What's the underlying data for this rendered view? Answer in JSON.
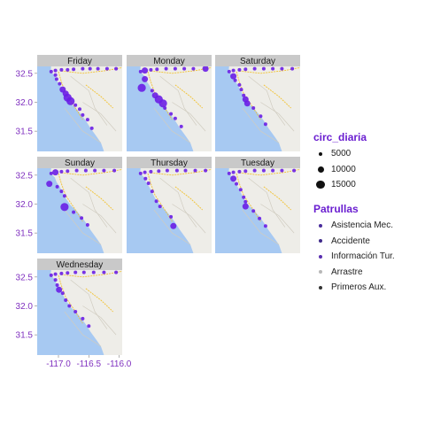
{
  "chart_data": {
    "type": "scatter",
    "facets": [
      "Friday",
      "Monday",
      "Saturday",
      "Sunday",
      "Thursday",
      "Tuesday",
      "Wednesday"
    ],
    "xlim": [
      -117.35,
      -115.95
    ],
    "ylim": [
      31.15,
      32.62
    ],
    "x_ticks": [
      -117.0,
      -116.5,
      -116.0
    ],
    "x_tick_labels": [
      "-117.0",
      "-116.5",
      "-116.0"
    ],
    "y_ticks": [
      31.5,
      32.0,
      32.5
    ],
    "y_tick_labels": [
      "31.5",
      "32.0",
      "32.5"
    ],
    "xlabel": "",
    "ylabel": "",
    "grid": false,
    "legend_position": "right",
    "series": [
      {
        "facet": "Friday",
        "points": [
          {
            "x": -117.12,
            "y": 32.53,
            "size": 5000
          },
          {
            "x": -117.05,
            "y": 32.55,
            "size": 5000
          },
          {
            "x": -116.95,
            "y": 32.56,
            "size": 5000
          },
          {
            "x": -116.85,
            "y": 32.56,
            "size": 5000
          },
          {
            "x": -116.75,
            "y": 32.57,
            "size": 5000
          },
          {
            "x": -116.6,
            "y": 32.58,
            "size": 5000
          },
          {
            "x": -116.48,
            "y": 32.58,
            "size": 5000
          },
          {
            "x": -116.35,
            "y": 32.58,
            "size": 5000
          },
          {
            "x": -116.2,
            "y": 32.58,
            "size": 5000
          },
          {
            "x": -116.05,
            "y": 32.58,
            "size": 5000
          },
          {
            "x": -117.05,
            "y": 32.47,
            "size": 5000
          },
          {
            "x": -117.03,
            "y": 32.4,
            "size": 5000
          },
          {
            "x": -116.98,
            "y": 32.32,
            "size": 5000
          },
          {
            "x": -116.93,
            "y": 32.22,
            "size": 10000
          },
          {
            "x": -116.88,
            "y": 32.15,
            "size": 10000
          },
          {
            "x": -116.85,
            "y": 32.08,
            "size": 15000
          },
          {
            "x": -116.8,
            "y": 32.02,
            "size": 15000
          },
          {
            "x": -116.72,
            "y": 31.95,
            "size": 5000
          },
          {
            "x": -116.65,
            "y": 31.88,
            "size": 5000
          },
          {
            "x": -116.6,
            "y": 31.78,
            "size": 5000
          },
          {
            "x": -116.52,
            "y": 31.7,
            "size": 5000
          },
          {
            "x": -116.45,
            "y": 31.55,
            "size": 5000
          }
        ]
      },
      {
        "facet": "Monday",
        "points": [
          {
            "x": -117.12,
            "y": 32.53,
            "size": 5000
          },
          {
            "x": -117.05,
            "y": 32.55,
            "size": 10000
          },
          {
            "x": -116.95,
            "y": 32.56,
            "size": 5000
          },
          {
            "x": -116.85,
            "y": 32.57,
            "size": 5000
          },
          {
            "x": -116.7,
            "y": 32.58,
            "size": 5000
          },
          {
            "x": -116.55,
            "y": 32.58,
            "size": 5000
          },
          {
            "x": -116.4,
            "y": 32.58,
            "size": 5000
          },
          {
            "x": -116.25,
            "y": 32.58,
            "size": 5000
          },
          {
            "x": -116.05,
            "y": 32.58,
            "size": 10000
          },
          {
            "x": -117.05,
            "y": 32.4,
            "size": 10000
          },
          {
            "x": -117.1,
            "y": 32.25,
            "size": 15000
          },
          {
            "x": -116.93,
            "y": 32.2,
            "size": 5000
          },
          {
            "x": -116.88,
            "y": 32.12,
            "size": 10000
          },
          {
            "x": -116.82,
            "y": 32.05,
            "size": 15000
          },
          {
            "x": -116.75,
            "y": 31.98,
            "size": 15000
          },
          {
            "x": -116.72,
            "y": 31.9,
            "size": 5000
          },
          {
            "x": -116.62,
            "y": 31.8,
            "size": 5000
          },
          {
            "x": -116.55,
            "y": 31.72,
            "size": 5000
          },
          {
            "x": -116.45,
            "y": 31.58,
            "size": 5000
          }
        ]
      },
      {
        "facet": "Saturday",
        "points": [
          {
            "x": -117.12,
            "y": 32.53,
            "size": 5000
          },
          {
            "x": -117.05,
            "y": 32.55,
            "size": 5000
          },
          {
            "x": -116.95,
            "y": 32.56,
            "size": 5000
          },
          {
            "x": -116.85,
            "y": 32.57,
            "size": 5000
          },
          {
            "x": -116.7,
            "y": 32.58,
            "size": 5000
          },
          {
            "x": -116.55,
            "y": 32.58,
            "size": 5000
          },
          {
            "x": -116.4,
            "y": 32.58,
            "size": 5000
          },
          {
            "x": -116.25,
            "y": 32.58,
            "size": 5000
          },
          {
            "x": -116.08,
            "y": 32.58,
            "size": 5000
          },
          {
            "x": -117.05,
            "y": 32.45,
            "size": 10000
          },
          {
            "x": -117.02,
            "y": 32.38,
            "size": 5000
          },
          {
            "x": -116.95,
            "y": 32.3,
            "size": 5000
          },
          {
            "x": -116.92,
            "y": 32.22,
            "size": 5000
          },
          {
            "x": -116.88,
            "y": 32.12,
            "size": 5000
          },
          {
            "x": -116.85,
            "y": 32.05,
            "size": 10000
          },
          {
            "x": -116.82,
            "y": 31.98,
            "size": 10000
          },
          {
            "x": -116.72,
            "y": 31.9,
            "size": 5000
          },
          {
            "x": -116.6,
            "y": 31.76,
            "size": 5000
          },
          {
            "x": -116.52,
            "y": 31.62,
            "size": 5000
          }
        ]
      },
      {
        "facet": "Sunday",
        "points": [
          {
            "x": -117.12,
            "y": 32.53,
            "size": 5000
          },
          {
            "x": -117.05,
            "y": 32.55,
            "size": 10000
          },
          {
            "x": -116.95,
            "y": 32.56,
            "size": 5000
          },
          {
            "x": -116.85,
            "y": 32.57,
            "size": 5000
          },
          {
            "x": -116.7,
            "y": 32.58,
            "size": 5000
          },
          {
            "x": -116.55,
            "y": 32.58,
            "size": 5000
          },
          {
            "x": -116.4,
            "y": 32.58,
            "size": 5000
          },
          {
            "x": -116.25,
            "y": 32.58,
            "size": 5000
          },
          {
            "x": -116.08,
            "y": 32.58,
            "size": 5000
          },
          {
            "x": -117.15,
            "y": 32.35,
            "size": 10000
          },
          {
            "x": -117.02,
            "y": 32.3,
            "size": 5000
          },
          {
            "x": -116.95,
            "y": 32.22,
            "size": 5000
          },
          {
            "x": -116.9,
            "y": 32.14,
            "size": 5000
          },
          {
            "x": -116.9,
            "y": 31.95,
            "size": 15000
          },
          {
            "x": -116.75,
            "y": 31.86,
            "size": 5000
          },
          {
            "x": -116.62,
            "y": 31.76,
            "size": 5000
          },
          {
            "x": -116.52,
            "y": 31.64,
            "size": 5000
          }
        ]
      },
      {
        "facet": "Thursday",
        "points": [
          {
            "x": -117.12,
            "y": 32.53,
            "size": 5000
          },
          {
            "x": -117.05,
            "y": 32.55,
            "size": 5000
          },
          {
            "x": -116.95,
            "y": 32.56,
            "size": 5000
          },
          {
            "x": -116.82,
            "y": 32.57,
            "size": 5000
          },
          {
            "x": -116.68,
            "y": 32.58,
            "size": 5000
          },
          {
            "x": -116.52,
            "y": 32.58,
            "size": 5000
          },
          {
            "x": -116.38,
            "y": 32.58,
            "size": 5000
          },
          {
            "x": -116.22,
            "y": 32.58,
            "size": 5000
          },
          {
            "x": -116.05,
            "y": 32.58,
            "size": 5000
          },
          {
            "x": -117.04,
            "y": 32.44,
            "size": 5000
          },
          {
            "x": -116.99,
            "y": 32.36,
            "size": 5000
          },
          {
            "x": -116.93,
            "y": 32.22,
            "size": 5000
          },
          {
            "x": -116.86,
            "y": 32.05,
            "size": 5000
          },
          {
            "x": -116.8,
            "y": 31.96,
            "size": 5000
          },
          {
            "x": -116.62,
            "y": 31.78,
            "size": 5000
          },
          {
            "x": -116.58,
            "y": 31.62,
            "size": 10000
          }
        ]
      },
      {
        "facet": "Tuesday",
        "points": [
          {
            "x": -117.12,
            "y": 32.53,
            "size": 5000
          },
          {
            "x": -117.05,
            "y": 32.55,
            "size": 5000
          },
          {
            "x": -116.95,
            "y": 32.56,
            "size": 5000
          },
          {
            "x": -116.85,
            "y": 32.57,
            "size": 5000
          },
          {
            "x": -116.7,
            "y": 32.58,
            "size": 5000
          },
          {
            "x": -116.55,
            "y": 32.58,
            "size": 5000
          },
          {
            "x": -116.4,
            "y": 32.58,
            "size": 5000
          },
          {
            "x": -116.25,
            "y": 32.58,
            "size": 5000
          },
          {
            "x": -116.05,
            "y": 32.58,
            "size": 5000
          },
          {
            "x": -117.05,
            "y": 32.44,
            "size": 10000
          },
          {
            "x": -117.0,
            "y": 32.35,
            "size": 5000
          },
          {
            "x": -116.93,
            "y": 32.25,
            "size": 5000
          },
          {
            "x": -116.88,
            "y": 32.12,
            "size": 5000
          },
          {
            "x": -116.85,
            "y": 32.04,
            "size": 5000
          },
          {
            "x": -116.85,
            "y": 31.96,
            "size": 10000
          },
          {
            "x": -116.72,
            "y": 31.88,
            "size": 5000
          },
          {
            "x": -116.62,
            "y": 31.75,
            "size": 5000
          },
          {
            "x": -116.52,
            "y": 31.62,
            "size": 5000
          }
        ]
      },
      {
        "facet": "Wednesday",
        "points": [
          {
            "x": -117.12,
            "y": 32.53,
            "size": 5000
          },
          {
            "x": -117.05,
            "y": 32.55,
            "size": 5000
          },
          {
            "x": -116.95,
            "y": 32.56,
            "size": 5000
          },
          {
            "x": -116.85,
            "y": 32.57,
            "size": 5000
          },
          {
            "x": -116.72,
            "y": 32.58,
            "size": 5000
          },
          {
            "x": -116.58,
            "y": 32.58,
            "size": 5000
          },
          {
            "x": -116.42,
            "y": 32.58,
            "size": 5000
          },
          {
            "x": -116.25,
            "y": 32.58,
            "size": 5000
          },
          {
            "x": -116.05,
            "y": 32.58,
            "size": 5000
          },
          {
            "x": -117.05,
            "y": 32.45,
            "size": 5000
          },
          {
            "x": -117.02,
            "y": 32.36,
            "size": 5000
          },
          {
            "x": -116.99,
            "y": 32.28,
            "size": 10000
          },
          {
            "x": -116.93,
            "y": 32.22,
            "size": 5000
          },
          {
            "x": -116.88,
            "y": 32.1,
            "size": 5000
          },
          {
            "x": -116.82,
            "y": 32.0,
            "size": 5000
          },
          {
            "x": -116.72,
            "y": 31.9,
            "size": 5000
          },
          {
            "x": -116.6,
            "y": 31.78,
            "size": 5000
          },
          {
            "x": -116.5,
            "y": 31.65,
            "size": 5000
          }
        ]
      }
    ],
    "legends": [
      {
        "title": "circ_diaria",
        "type": "size",
        "entries": [
          {
            "label": "5000",
            "value": 5000
          },
          {
            "label": "10000",
            "value": 10000
          },
          {
            "label": "15000",
            "value": 15000
          }
        ]
      },
      {
        "title": "Patrullas",
        "type": "color",
        "entries": [
          {
            "label": "Asistencia Mec.",
            "color": "#4a2d9c"
          },
          {
            "label": "Accidente",
            "color": "#3f2a8a"
          },
          {
            "label": "Información Tur.",
            "color": "#5a2fb0"
          },
          {
            "label": "Arrastre",
            "color": "#b8b8b8"
          },
          {
            "label": "Primeros Aux.",
            "color": "#333333"
          }
        ]
      }
    ]
  },
  "colors": {
    "point": "#6a1ee6",
    "strip_bg": "#c9c9c9",
    "strip_text": "#1a1a1a",
    "axis_text": "#7f2fbf",
    "legend_title": "#6a1ed0",
    "ocean": "#a7c9f2",
    "land": "#eeede8",
    "road_major": "#f2c233",
    "road_minor": "#d0ccc0"
  }
}
